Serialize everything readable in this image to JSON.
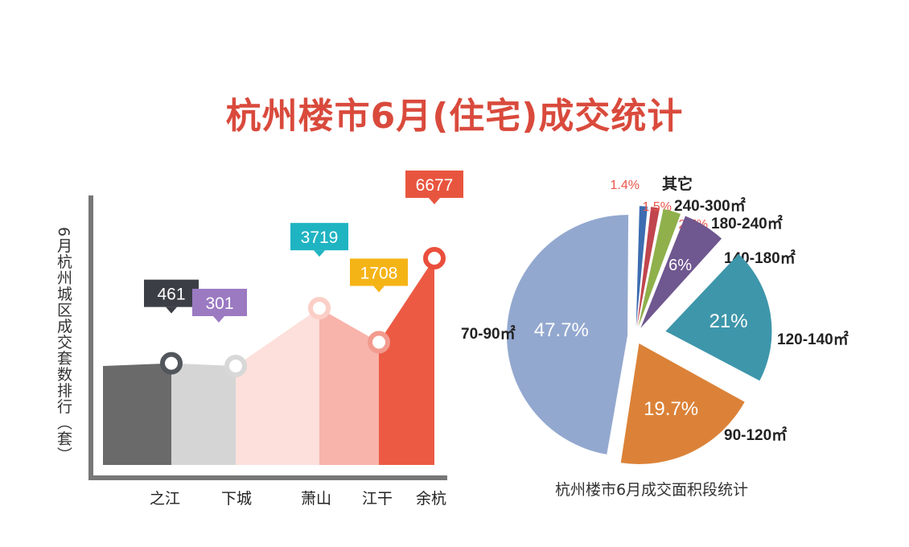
{
  "title": "杭州楼市6月(住宅)成交统计",
  "chart_data": [
    {
      "type": "area",
      "ylabel": "6月杭州城区成交套数排行（套）",
      "categories": [
        "之江",
        "下城",
        "萧山",
        "江干",
        "余杭"
      ],
      "values": [
        461,
        301,
        3719,
        1708,
        6677
      ],
      "value_labels": [
        "461",
        "301",
        "3719",
        "1708",
        "6677"
      ],
      "colors": {
        "fills": [
          "#6a6a6a",
          "#d5d5d5",
          "#fde0db",
          "#f8b3aa",
          "#ec5a44"
        ],
        "badges": [
          "#3b3f45",
          "#9b7ac2",
          "#1fb4c2",
          "#f5b416",
          "#e8553f"
        ],
        "markers": [
          "#52565c",
          "#d8d8d8",
          "#fbcfc7",
          "#f29b8e",
          "#ea4f3d"
        ]
      }
    },
    {
      "type": "pie",
      "caption": "杭州楼市6月成交面积段统计",
      "slices": [
        {
          "label": "其它",
          "value": 1.4,
          "pct_label": "1.4%",
          "color": "#3d6db0",
          "exploded": false
        },
        {
          "label": "240-300㎡",
          "value": 1.5,
          "pct_label": "1.5%",
          "color": "#c0454e",
          "exploded": false
        },
        {
          "label": "180-240㎡",
          "value": 2.7,
          "pct_label": "2.7%",
          "color": "#8fb04b",
          "exploded": false
        },
        {
          "label": "140-180㎡",
          "value": 6,
          "pct_label": "6%",
          "color": "#6f578f",
          "exploded": false
        },
        {
          "label": "120-140㎡",
          "value": 21,
          "pct_label": "21%",
          "color": "#3e96ab",
          "exploded": true
        },
        {
          "label": "90-120㎡",
          "value": 19.7,
          "pct_label": "19.7%",
          "color": "#db8238",
          "exploded": false
        },
        {
          "label": "70-90㎡",
          "value": 47.7,
          "pct_label": "47.7%",
          "color": "#93a8cf",
          "exploded": false
        }
      ]
    }
  ]
}
